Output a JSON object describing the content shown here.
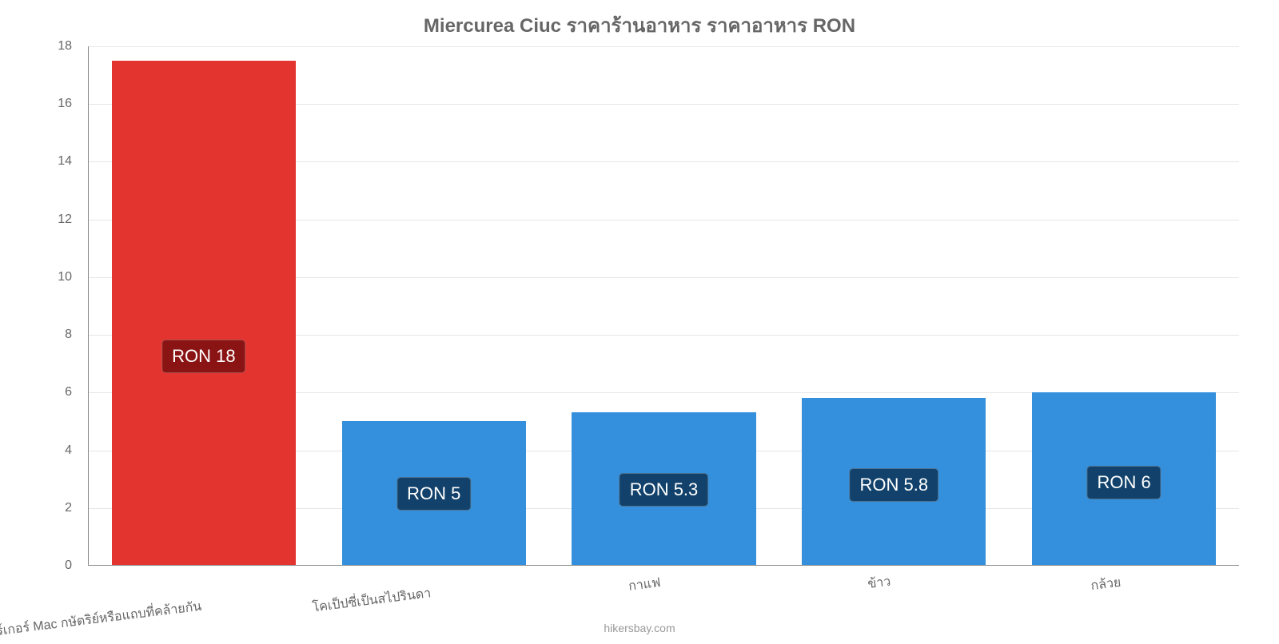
{
  "chart": {
    "type": "bar",
    "title": "Miercurea Ciuc ราคาร้านอาหาร ราคาอาหาร RON",
    "title_color": "#666666",
    "title_fontsize": 24,
    "background_color": "#ffffff",
    "grid_color": "#e6e6e6",
    "tick_color": "#666666",
    "tick_fontsize": 16,
    "ylim": [
      0,
      18
    ],
    "ytick_step": 2,
    "bar_width": 0.8,
    "attribution": "hikersbay.com",
    "categories": [
      "เบอร์เกอร์ Mac กษัตริย์หรือแถบที่คล้ายกัน",
      "โคเป็ปซี่เป็นสไปรินดา",
      "กาแฟ",
      "ข้าว",
      "กล้วย"
    ],
    "values": [
      17.5,
      5.0,
      5.3,
      5.8,
      6.0
    ],
    "bar_colors": [
      "#e3342f",
      "#3490dc",
      "#3490dc",
      "#3490dc",
      "#3490dc"
    ],
    "value_labels": [
      "RON 18",
      "RON 5",
      "RON 5.3",
      "RON 5.8",
      "RON 6"
    ],
    "value_label_bg": [
      "#8a1313",
      "#12426b",
      "#12426b",
      "#12426b",
      "#12426b"
    ],
    "value_label_color": "#ffffff",
    "value_label_fontsize": 22
  }
}
